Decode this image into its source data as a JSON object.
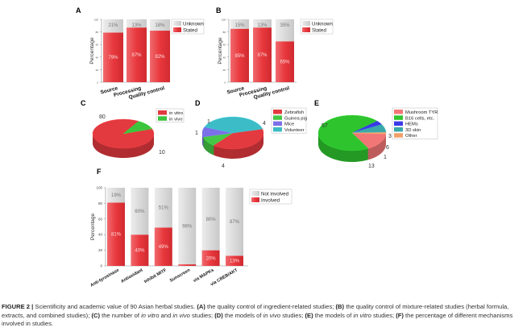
{
  "colors": {
    "stated": "#e8383d",
    "unknown": "#d9d9d9"
  },
  "chart_data": [
    {
      "panel": "A",
      "type": "bar",
      "stacked": true,
      "ylabel": "Percentage",
      "ylim": [
        0,
        100
      ],
      "yticks": [
        "0",
        "20",
        "40",
        "60",
        "80",
        "100"
      ],
      "categories": [
        "Source",
        "Processing",
        "Quality control"
      ],
      "series": [
        {
          "name": "Stated",
          "values": [
            79,
            87,
            82
          ],
          "labels": [
            "79%",
            "87%",
            "82%"
          ],
          "color": "#e8383d"
        },
        {
          "name": "Unknown",
          "values": [
            21,
            13,
            18
          ],
          "labels": [
            "21%",
            "13%",
            "18%"
          ],
          "color": "#d9d9d9"
        }
      ],
      "legend": "top-right"
    },
    {
      "panel": "B",
      "type": "bar",
      "stacked": true,
      "ylabel": "Percentage",
      "ylim": [
        0,
        100
      ],
      "yticks": [
        "0",
        "20",
        "40",
        "60",
        "80",
        "100"
      ],
      "categories": [
        "Source",
        "Processing",
        "Quality control"
      ],
      "series": [
        {
          "name": "Stated",
          "values": [
            85,
            87,
            65
          ],
          "labels": [
            "85%",
            "87%",
            "65%"
          ],
          "color": "#e8383d"
        },
        {
          "name": "Unknown",
          "values": [
            15,
            13,
            35
          ],
          "labels": [
            "15%",
            "13%",
            "35%"
          ],
          "color": "#d9d9d9"
        }
      ],
      "legend": "top-right"
    },
    {
      "panel": "C",
      "type": "pie",
      "legend": "top-right",
      "slices": [
        {
          "name": "in vitro",
          "value": 80,
          "label": "80",
          "color": "#e23a3f"
        },
        {
          "name": "in vivo",
          "value": 10,
          "label": "10",
          "color": "#3cc43c"
        }
      ]
    },
    {
      "panel": "D",
      "type": "pie",
      "legend": "top-right",
      "slices": [
        {
          "name": "Zebrafish",
          "value": 4,
          "label": "4",
          "color": "#e23a3f"
        },
        {
          "name": "Guinea pig",
          "value": 1,
          "label": "1",
          "color": "#46c846"
        },
        {
          "name": "Mice",
          "value": 1,
          "label": "1",
          "color": "#7b70e8"
        },
        {
          "name": "Volunteer",
          "value": 4,
          "label": "4",
          "color": "#3bbcc6"
        }
      ]
    },
    {
      "panel": "E",
      "type": "pie",
      "legend": "top-right",
      "slices": [
        {
          "name": "Mushroom TYR",
          "value": 13,
          "label": "13",
          "color": "#f27676"
        },
        {
          "name": "B16 cells, etc.",
          "value": 57,
          "label": "57",
          "color": "#2ec42e"
        },
        {
          "name": "HEMs",
          "value": 3,
          "label": "3",
          "color": "#3a3ae6"
        },
        {
          "name": "3D skin",
          "value": 6,
          "label": "6",
          "color": "#3aa8a8"
        },
        {
          "name": "Other",
          "value": 1,
          "label": "1",
          "color": "#f0a06a"
        }
      ]
    },
    {
      "panel": "F",
      "type": "bar",
      "stacked": true,
      "ylabel": "Percentage",
      "ylim": [
        0,
        100
      ],
      "yticks": [
        "0",
        "20",
        "40",
        "60",
        "80",
        "100"
      ],
      "categories": [
        "Anti-tyrosinase",
        "Antioxidant",
        "Inhibit MITF",
        "Sunscreen",
        "via MAPKs",
        "via CREB/AKT"
      ],
      "series": [
        {
          "name": "Involved",
          "values": [
            81,
            40,
            49,
            2,
            20,
            13
          ],
          "labels": [
            "81%",
            "40%",
            "49%",
            "",
            "20%",
            "13%"
          ],
          "color": "#e8383d"
        },
        {
          "name": "Not involved",
          "values": [
            19,
            60,
            51,
            98,
            80,
            87
          ],
          "labels": [
            "19%",
            "60%",
            "51%",
            "98%",
            "80%",
            "87%"
          ],
          "color": "#d9d9d9"
        }
      ],
      "legend": "top-right"
    }
  ],
  "caption": {
    "figure": "FIGURE 2 |",
    "parts": [
      {
        "t": " Scientificity and academic value of 90 Asian herbal studies. "
      },
      {
        "b": "(A)"
      },
      {
        "t": " the quality control of ingredient-related studies; "
      },
      {
        "b": "(B)"
      },
      {
        "t": " the quality control of mixture-related studies (herbal formula, extracts, and combined studies); "
      },
      {
        "b": "(C)"
      },
      {
        "t": " the number of "
      },
      {
        "i": "in vitro"
      },
      {
        "t": " and "
      },
      {
        "i": "in vivo"
      },
      {
        "t": " studies; "
      },
      {
        "b": "(D)"
      },
      {
        "t": " the models of "
      },
      {
        "i": "in vivo"
      },
      {
        "t": " studies; "
      },
      {
        "b": "(E)"
      },
      {
        "t": " the models of "
      },
      {
        "i": "in vitro"
      },
      {
        "t": " studies; "
      },
      {
        "b": "(F)"
      },
      {
        "t": " the percentage of different mechanisms involved in studies."
      }
    ]
  }
}
